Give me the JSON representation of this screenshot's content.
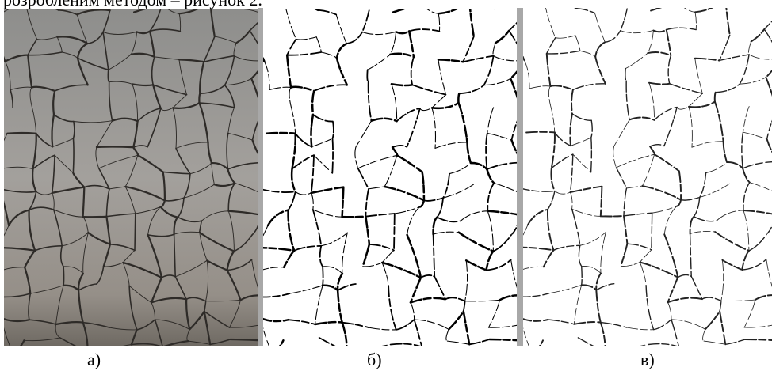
{
  "header": {
    "text": "розробленим методом – рисунок 2."
  },
  "figure": {
    "panels": [
      {
        "label": "а)"
      },
      {
        "label": "б)"
      },
      {
        "label": "в)"
      }
    ]
  }
}
